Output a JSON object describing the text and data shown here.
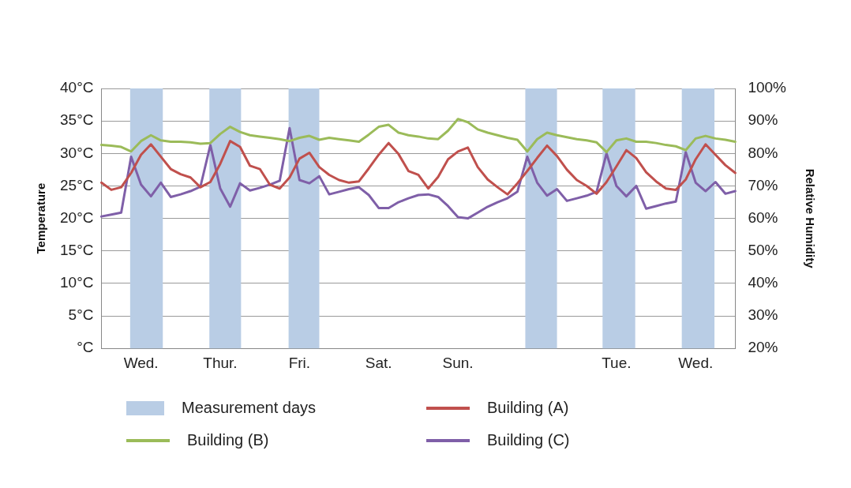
{
  "chart_data": {
    "type": "line",
    "ylabel": "Temperature",
    "y2label": "Relative Humidity",
    "categories": [
      null,
      null,
      null,
      null,
      "Wed.",
      null,
      null,
      null,
      null,
      null,
      null,
      null,
      "Thur.",
      null,
      null,
      null,
      null,
      null,
      null,
      null,
      "Fri.",
      null,
      null,
      null,
      null,
      null,
      null,
      null,
      "Sat.",
      null,
      null,
      null,
      null,
      null,
      null,
      null,
      "Sun.",
      null,
      null,
      null,
      null,
      null,
      null,
      null,
      null,
      null,
      null,
      null,
      null,
      null,
      null,
      null,
      "Tue.",
      null,
      null,
      null,
      null,
      null,
      null,
      null,
      "Wed.",
      null,
      null,
      null,
      null
    ],
    "ylim": [
      0,
      40
    ],
    "yticks": [
      {
        "value": 0,
        "label": "°C"
      },
      {
        "value": 5,
        "label": "5°C"
      },
      {
        "value": 10,
        "label": "10°C"
      },
      {
        "value": 15,
        "label": "15°C"
      },
      {
        "value": 20,
        "label": "20°C"
      },
      {
        "value": 25,
        "label": "25°C"
      },
      {
        "value": 30,
        "label": "30°C"
      },
      {
        "value": 35,
        "label": "35°C"
      },
      {
        "value": 40,
        "label": "40°C"
      }
    ],
    "y2lim": [
      20,
      100
    ],
    "y2ticks": [
      {
        "value": 20,
        "label": "20%"
      },
      {
        "value": 30,
        "label": "30%"
      },
      {
        "value": 40,
        "label": "40%"
      },
      {
        "value": 50,
        "label": "50%"
      },
      {
        "value": 60,
        "label": "60%"
      },
      {
        "value": 70,
        "label": "70%"
      },
      {
        "value": 80,
        "label": "80%"
      },
      {
        "value": 90,
        "label": "90%"
      },
      {
        "value": 100,
        "label": "100%"
      }
    ],
    "grid": "y",
    "legend": "bottom",
    "marker": "none",
    "line_style": "solid",
    "annotations": [
      "Measurement days"
    ],
    "series": [
      {
        "name": "Building (A)",
        "color": "#c0504d",
        "values": [
          25.5,
          24.4,
          24.8,
          27,
          29.8,
          31.4,
          29.5,
          27.6,
          26.8,
          26.3,
          24.8,
          25.6,
          28.4,
          31.9,
          31,
          28.1,
          27.6,
          25.2,
          24.6,
          26.3,
          29.2,
          30.1,
          27.9,
          26.7,
          25.9,
          25.5,
          25.7,
          27.7,
          29.8,
          31.6,
          29.9,
          27.3,
          26.7,
          24.6,
          26.4,
          29.1,
          30.3,
          30.9,
          27.9,
          26,
          24.8,
          23.7,
          25.4,
          27.3,
          29.3,
          31.2,
          29.6,
          27.5,
          25.9,
          25,
          23.8,
          25.6,
          28,
          30.5,
          29.3,
          27.1,
          25.7,
          24.6,
          24.4,
          26,
          29.1,
          31.4,
          29.8,
          28.2,
          27
        ]
      },
      {
        "name": "Building (B)",
        "color": "#9bbb59",
        "values": [
          31.3,
          31.2,
          31,
          30.3,
          31.9,
          32.8,
          32,
          31.8,
          31.8,
          31.7,
          31.5,
          31.6,
          33,
          34.1,
          33.3,
          32.8,
          32.6,
          32.4,
          32.2,
          31.9,
          32.4,
          32.7,
          32.1,
          32.4,
          32.2,
          32,
          31.8,
          32.9,
          34.1,
          34.4,
          33.2,
          32.8,
          32.6,
          32.3,
          32.2,
          33.5,
          35.3,
          34.8,
          33.7,
          33.2,
          32.8,
          32.4,
          32.1,
          30.3,
          32.2,
          33.2,
          32.8,
          32.5,
          32.2,
          32,
          31.7,
          30.2,
          32,
          32.3,
          31.8,
          31.8,
          31.6,
          31.3,
          31.1,
          30.5,
          32.3,
          32.7,
          32.3,
          32.1,
          31.8
        ]
      },
      {
        "name": "Building (C)",
        "color": "#7f5fa8",
        "values": [
          20.3,
          20.6,
          20.9,
          29.5,
          25.2,
          23.4,
          25.5,
          23.3,
          23.7,
          24.2,
          24.9,
          31.3,
          24.6,
          21.8,
          25.4,
          24.3,
          24.7,
          25.2,
          25.8,
          33.9,
          25.9,
          25.4,
          26.5,
          23.7,
          24.1,
          24.5,
          24.8,
          23.6,
          21.6,
          21.6,
          22.5,
          23.1,
          23.6,
          23.7,
          23.3,
          21.9,
          20.2,
          20,
          20.9,
          21.8,
          22.5,
          23.1,
          24.1,
          29.5,
          25.5,
          23.5,
          24.5,
          22.7,
          23.1,
          23.5,
          24.1,
          30,
          25,
          23.4,
          25,
          21.5,
          21.9,
          22.3,
          22.6,
          30.2,
          25.5,
          24.2,
          25.6,
          23.8,
          24.2
        ]
      }
    ]
  }
}
